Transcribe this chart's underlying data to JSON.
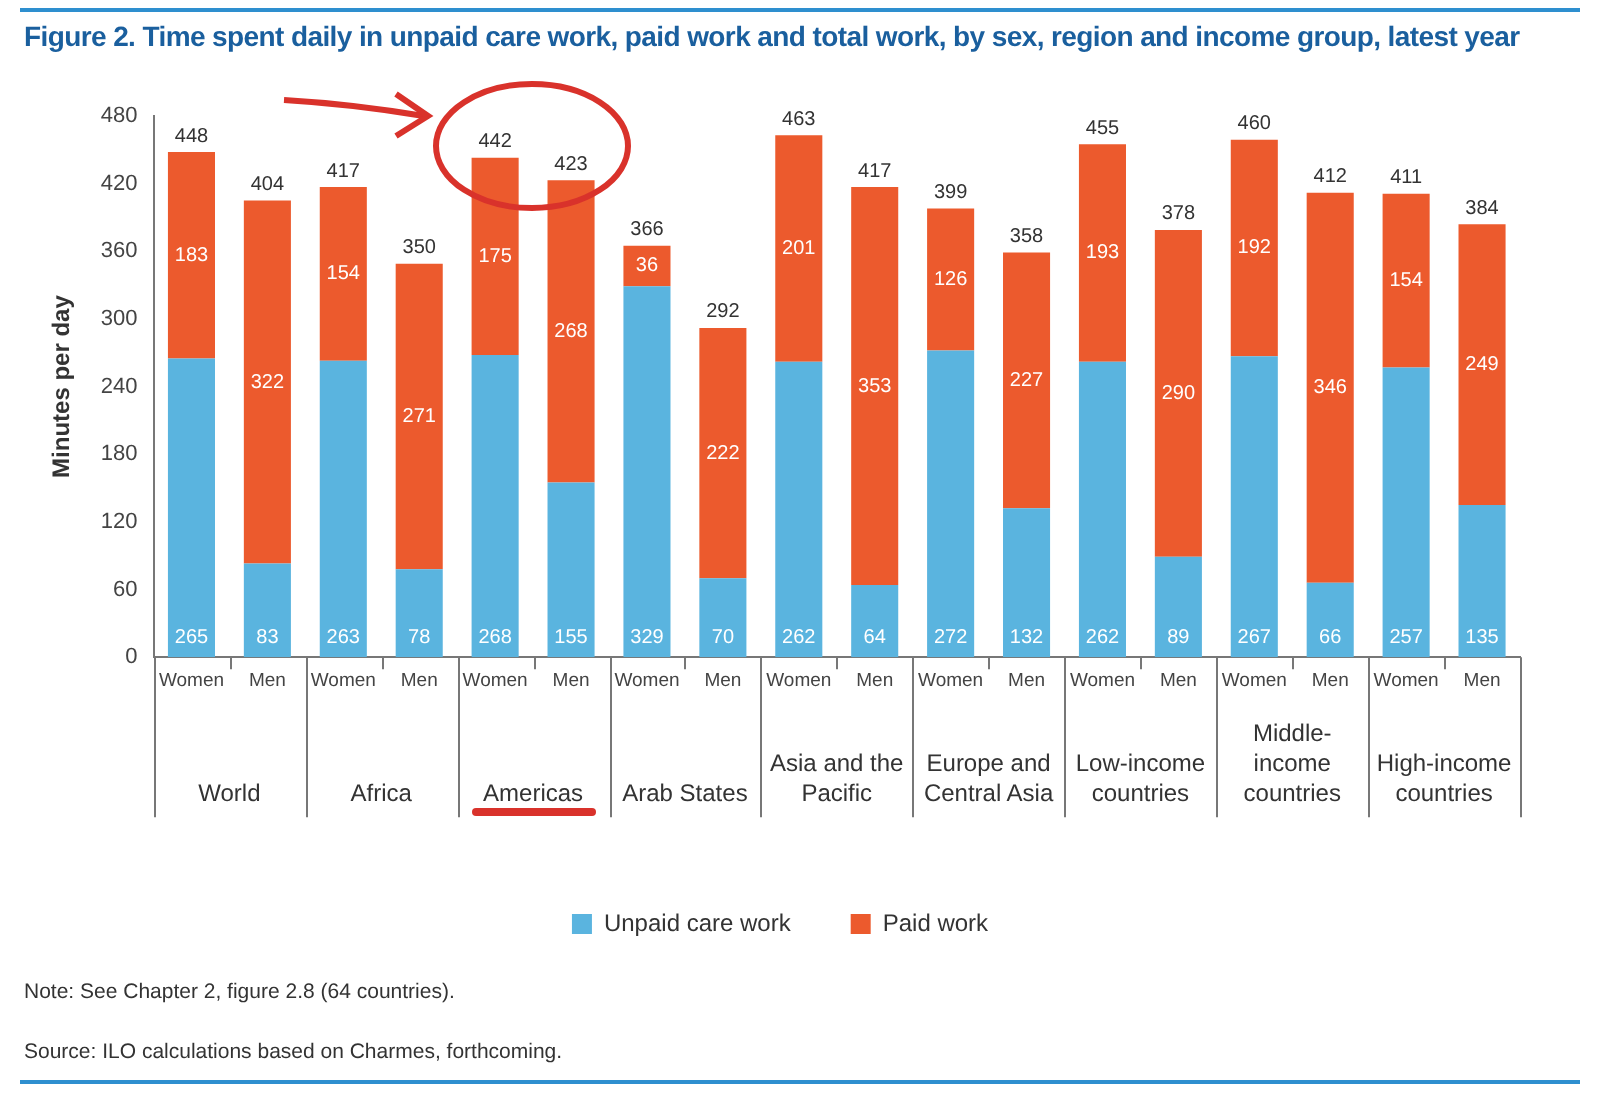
{
  "chart_data": {
    "type": "bar",
    "stacked": true,
    "title": "Figure 2.  Time spent daily in unpaid care work, paid work and total work, by sex, region and income group, latest year",
    "ylabel": "Minutes per day",
    "categories": [
      "Women",
      "Men",
      "Women",
      "Men",
      "Women",
      "Men",
      "Women",
      "Men",
      "Women",
      "Men",
      "Women",
      "Men",
      "Women",
      "Men",
      "Women",
      "Men",
      "Women",
      "Men"
    ],
    "series": [
      {
        "name": "Unpaid care work",
        "color": "#5ab4df",
        "values": [
          265,
          83,
          263,
          78,
          268,
          155,
          329,
          70,
          262,
          64,
          272,
          132,
          262,
          89,
          267,
          66,
          257,
          135
        ]
      },
      {
        "name": "Paid work",
        "color": "#ec5a2d",
        "values": [
          183,
          322,
          154,
          271,
          175,
          268,
          36,
          222,
          201,
          353,
          126,
          227,
          193,
          290,
          192,
          346,
          154,
          249
        ]
      }
    ],
    "totals": [
      "448",
      "404",
      "417",
      "350",
      "442",
      "423",
      "366",
      "292",
      "463",
      "417",
      "399",
      "358",
      "455",
      "378",
      "460",
      "412",
      "411",
      "384"
    ],
    "data_labels": true,
    "ylim": [
      0,
      480
    ],
    "yticks": [
      0,
      60,
      120,
      180,
      240,
      300,
      360,
      420,
      480
    ],
    "grid": false,
    "legend": "bottom",
    "annotations": [
      "World",
      "Africa",
      "Americas",
      "Arab States",
      "Asia and the Pacific",
      "Europe and Central Asia",
      "Low-income countries",
      "Middle-income countries",
      "High-income countries",
      "Note: See Chapter 2, figure 2.8 (64 countries).",
      "Source: ILO calculations based on Charmes, forthcoming."
    ]
  }
}
